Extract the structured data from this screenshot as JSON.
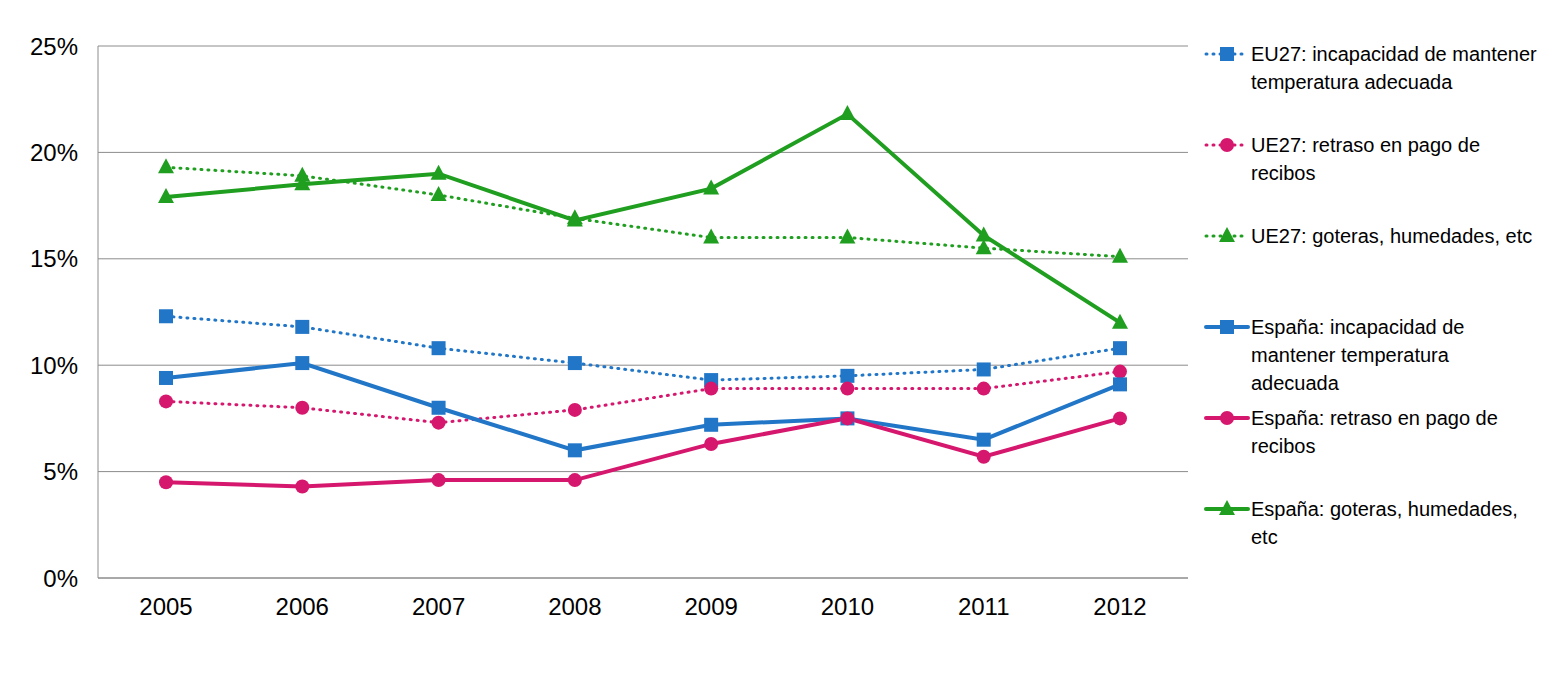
{
  "chart_data": {
    "type": "line",
    "categories": [
      "2005",
      "2006",
      "2007",
      "2008",
      "2009",
      "2010",
      "2011",
      "2012"
    ],
    "ylim": [
      0,
      25
    ],
    "yticks": [
      {
        "value": 0,
        "label": "0%"
      },
      {
        "value": 5,
        "label": "5%"
      },
      {
        "value": 10,
        "label": "10%"
      },
      {
        "value": 15,
        "label": "15%"
      },
      {
        "value": 20,
        "label": "20%"
      },
      {
        "value": 25,
        "label": "25%"
      }
    ],
    "grid": true,
    "legend": "right",
    "series": [
      {
        "name": "EU27: incapacidad de mantener temperatura adecuada",
        "color": "#2176c7",
        "marker": "square",
        "line_style": "dotted",
        "values": [
          12.3,
          11.8,
          10.8,
          10.1,
          9.3,
          9.5,
          9.8,
          10.8
        ]
      },
      {
        "name": "UE27: retraso en pago de recibos",
        "color": "#d6176e",
        "marker": "circle",
        "line_style": "dotted",
        "values": [
          8.3,
          8.0,
          7.3,
          7.9,
          8.9,
          8.9,
          8.9,
          9.7
        ]
      },
      {
        "name": "UE27: goteras, humedades, etc",
        "color": "#1f9e1f",
        "marker": "triangle",
        "line_style": "dotted",
        "values": [
          19.3,
          18.9,
          18.0,
          16.9,
          16.0,
          16.0,
          15.5,
          15.1
        ]
      },
      {
        "name": "España: incapacidad de mantener temperatura adecuada",
        "color": "#2176c7",
        "marker": "square",
        "line_style": "solid",
        "values": [
          9.4,
          10.1,
          8.0,
          6.0,
          7.2,
          7.5,
          6.5,
          9.1
        ]
      },
      {
        "name": "España: retraso en pago de recibos",
        "color": "#d6176e",
        "marker": "circle",
        "line_style": "solid",
        "values": [
          4.5,
          4.3,
          4.6,
          4.6,
          6.3,
          7.5,
          5.7,
          7.5
        ]
      },
      {
        "name": "España: goteras, humedades, etc",
        "color": "#1f9e1f",
        "marker": "triangle",
        "line_style": "solid",
        "values": [
          17.9,
          18.5,
          19.0,
          16.8,
          18.3,
          21.8,
          16.1,
          12.0
        ]
      }
    ]
  }
}
